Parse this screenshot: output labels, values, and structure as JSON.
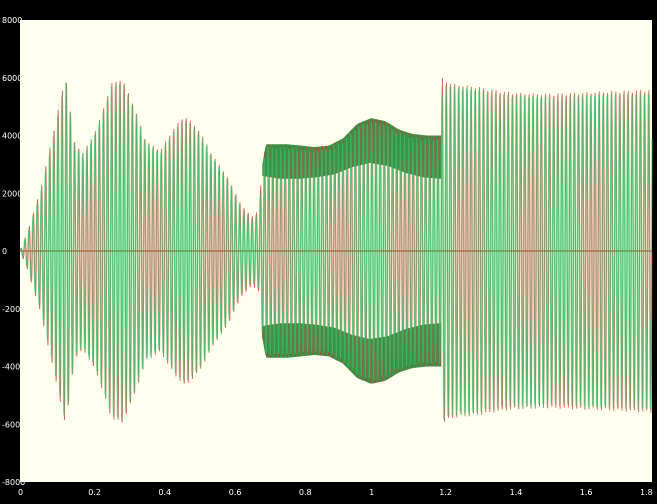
{
  "chart_data": {
    "type": "line",
    "title": "",
    "xlabel": "",
    "ylabel": "",
    "xlim": [
      0,
      1.8
    ],
    "ylim": [
      -8000,
      8000
    ],
    "x_ticks": [
      "0",
      "0.2",
      "0.4",
      "0.6",
      "0.8",
      "1",
      "1.2",
      "1.4",
      "1.6",
      "1.8"
    ],
    "y_ticks": [
      "8000",
      "6000",
      "4000",
      "2000",
      "0",
      "-2000",
      "-4000",
      "-6000",
      "-8000"
    ],
    "grid": false,
    "legend": "none",
    "background_color": "#fffff0",
    "frame_color": "#000000",
    "axis_text_color": "#ffffff",
    "series": [
      {
        "color": "#c0392b",
        "role": "oscillating waveform (red)",
        "envelope_time": [
          0,
          0.02,
          0.06,
          0.1,
          0.13,
          0.155,
          0.18,
          0.22,
          0.26,
          0.29,
          0.32,
          0.36,
          0.4,
          0.44,
          0.47,
          0.51,
          0.55,
          0.59,
          0.63,
          0.66,
          0.68,
          0.69,
          0.7,
          0.72,
          0.76,
          0.8,
          0.84,
          0.88,
          0.92,
          0.96,
          1.0,
          1.04,
          1.08,
          1.12,
          1.16,
          1.2,
          1.202,
          1.23,
          1.3,
          1.4,
          1.5,
          1.6,
          1.7,
          1.8
        ],
        "envelope_amplitude": [
          0,
          600,
          2200,
          4400,
          6100,
          3800,
          3400,
          4300,
          5800,
          6000,
          5200,
          3800,
          3500,
          4300,
          4700,
          4200,
          3300,
          2600,
          1600,
          1200,
          1400,
          3000,
          3700,
          3700,
          3700,
          3650,
          3600,
          3650,
          3900,
          4400,
          4600,
          4500,
          4200,
          4050,
          4000,
          4000,
          6000,
          5800,
          5700,
          5500,
          5450,
          5500,
          5550,
          5600
        ]
      },
      {
        "color": "#2ecc71",
        "role": "oscillating waveform (green)",
        "envelope_time": [
          0,
          0.02,
          0.06,
          0.1,
          0.13,
          0.155,
          0.18,
          0.22,
          0.26,
          0.29,
          0.32,
          0.36,
          0.4,
          0.44,
          0.47,
          0.51,
          0.55,
          0.59,
          0.63,
          0.66,
          0.68,
          0.69,
          0.7,
          0.72,
          0.76,
          0.8,
          0.84,
          0.88,
          0.92,
          0.96,
          1.0,
          1.04,
          1.08,
          1.12,
          1.16,
          1.2,
          1.202,
          1.23,
          1.3,
          1.4,
          1.5,
          1.6,
          1.7,
          1.8
        ],
        "envelope_amplitude": [
          0,
          550,
          2100,
          4300,
          6000,
          3700,
          3300,
          4200,
          5700,
          5900,
          5100,
          3700,
          3400,
          4200,
          4600,
          4100,
          3200,
          2500,
          1500,
          1100,
          1300,
          2900,
          3600,
          3600,
          3600,
          3550,
          3500,
          3550,
          3800,
          4300,
          4500,
          4400,
          4100,
          3950,
          3900,
          3900,
          5900,
          5700,
          5600,
          5400,
          5350,
          5400,
          5450,
          5500
        ]
      }
    ],
    "inner_band": {
      "color": "#1e7d2a",
      "t_start": 0.69,
      "t_end": 1.2,
      "inner_amplitude": [
        2600,
        2500,
        2500,
        2550,
        2650,
        2900,
        3050,
        2950,
        2700,
        2550,
        2500
      ]
    }
  }
}
